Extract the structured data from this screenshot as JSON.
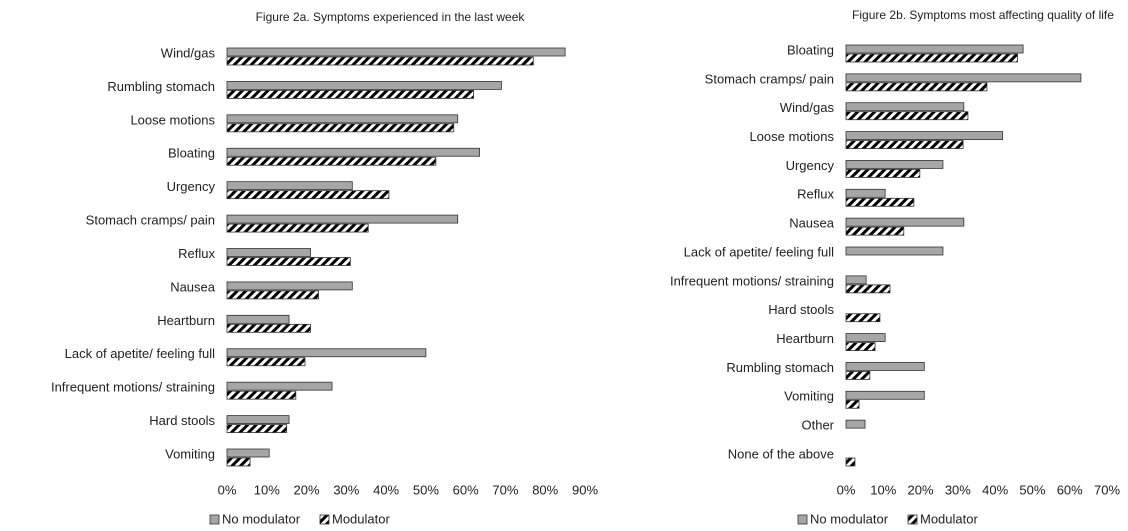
{
  "chart_data": [
    {
      "type": "bar",
      "orientation": "horizontal",
      "title": "Figure 2a. Symptoms experienced in the last week",
      "categories": [
        "Wind/gas",
        "Rumbling stomach",
        "Loose motions",
        "Bloating",
        "Urgency",
        "Stomach cramps/ pain",
        "Reflux",
        "Nausea",
        "Heartburn",
        "Lack of apetite/ feeling full",
        "Infrequent motions/ straining",
        "Hard stools",
        "Vomiting"
      ],
      "series": [
        {
          "name": "No modulator",
          "color": "#a6a6a6",
          "values": [
            85,
            69,
            58,
            63.5,
            31.5,
            58,
            21,
            31.5,
            15.6,
            50,
            26.4,
            15.6,
            10.6
          ]
        },
        {
          "name": "Modulator",
          "color": "#000000",
          "hatch": true,
          "values": [
            77,
            62,
            57,
            52.5,
            40.7,
            35.5,
            31,
            23,
            21,
            19.6,
            17.3,
            15,
            5.8
          ]
        }
      ],
      "xlim": [
        0,
        90
      ],
      "xticks": [
        {
          "value": 0,
          "label": "0%"
        },
        {
          "value": 10,
          "label": "10%"
        },
        {
          "value": 20,
          "label": "20%"
        },
        {
          "value": 30,
          "label": "30%"
        },
        {
          "value": 40,
          "label": "40%"
        },
        {
          "value": 50,
          "label": "50%"
        },
        {
          "value": 60,
          "label": "60%"
        },
        {
          "value": 70,
          "label": "70%"
        },
        {
          "value": 80,
          "label": "80%"
        },
        {
          "value": 90,
          "label": "90%"
        }
      ],
      "legend": "bottom"
    },
    {
      "type": "bar",
      "orientation": "horizontal",
      "title": "Figure 2b. Symptoms most affecting quality of life",
      "categories": [
        "Bloating",
        "Stomach cramps/ pain",
        "Wind/gas",
        "Loose motions",
        "Urgency",
        "Reflux",
        "Nausea",
        "Lack of apetite/ feeling full",
        "Infrequent motions/ straining",
        "Hard stools",
        "Heartburn",
        "Rumbling stomach",
        "Vomiting",
        "Other",
        "None of the above"
      ],
      "series": [
        {
          "name": "No modulator",
          "color": "#a6a6a6",
          "values": [
            47.5,
            63,
            31.6,
            42,
            26,
            10.5,
            31.6,
            26,
            5.4,
            0,
            10.5,
            21,
            21,
            5.1,
            0
          ]
        },
        {
          "name": "Modulator",
          "color": "#000000",
          "hatch": true,
          "values": [
            46,
            37.8,
            32.7,
            31.4,
            19.8,
            18.2,
            15.5,
            0,
            11.8,
            9.1,
            7.8,
            6.4,
            3.5,
            0,
            2.4
          ]
        }
      ],
      "xlim": [
        0,
        70
      ],
      "xticks": [
        {
          "value": 0,
          "label": "0%"
        },
        {
          "value": 10,
          "label": "10%"
        },
        {
          "value": 20,
          "label": "20%"
        },
        {
          "value": 30,
          "label": "30%"
        },
        {
          "value": 40,
          "label": "40%"
        },
        {
          "value": 50,
          "label": "50%"
        },
        {
          "value": 60,
          "label": "60%"
        },
        {
          "value": 70,
          "label": "70%"
        }
      ],
      "legend": "bottom"
    }
  ]
}
